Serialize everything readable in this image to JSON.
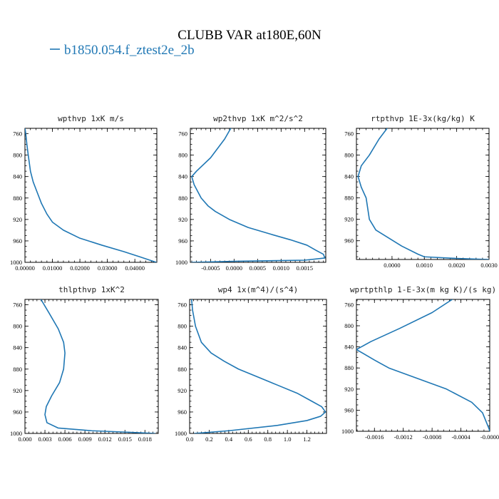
{
  "figure": {
    "title": "CLUBB VAR at180E,60N",
    "legend": [
      {
        "label": "b1850.054.f_ztest2e_2b",
        "color": "#1f77b4"
      }
    ]
  },
  "chart_data": [
    {
      "type": "line",
      "title": "wpthvp  1xK m/s",
      "y_inverted": true,
      "ylim": [
        1000,
        750
      ],
      "yticks": [
        "760",
        "800",
        "840",
        "880",
        "920",
        "960",
        "1000"
      ],
      "xlim": [
        0,
        0.048
      ],
      "xticks": [
        0,
        0.01,
        0.02,
        0.03,
        0.04
      ],
      "xticklabels": [
        "0.00000",
        "0.01000",
        "0.02000",
        "0.03000",
        "0.04000"
      ],
      "series": [
        {
          "color": "#1f77b4",
          "x": [
            0.0,
            0.0003,
            0.0007,
            0.0012,
            0.002,
            0.003,
            0.0045,
            0.006,
            0.008,
            0.01,
            0.014,
            0.02,
            0.028,
            0.036,
            0.042,
            0.0478
          ],
          "y": [
            750,
            760,
            780,
            800,
            830,
            850,
            870,
            890,
            910,
            925,
            940,
            955,
            968,
            980,
            990,
            1000
          ]
        }
      ]
    },
    {
      "type": "line",
      "title": "wp2thvp  1xK m^2/s^2",
      "y_inverted": true,
      "ylim": [
        1000,
        750
      ],
      "yticks": [
        "760",
        "800",
        "840",
        "880",
        "920",
        "960",
        "1000"
      ],
      "xlim": [
        -0.00093,
        0.00195
      ],
      "xticks": [
        -0.0005,
        0.0,
        0.0005,
        0.001,
        0.0015
      ],
      "xticklabels": [
        "-0.0005",
        "0.0000",
        "0.0005",
        "0.0010",
        "0.0015"
      ],
      "series": [
        {
          "color": "#1f77b4",
          "x": [
            -7e-05,
            -0.0002,
            -0.0005,
            -0.0008,
            -0.0009,
            -0.00085,
            -0.0007,
            -0.00055,
            -0.0004,
            -0.0001,
            0.0003,
            0.0008,
            0.0012,
            0.00155,
            0.00175,
            0.0019,
            0.00193,
            0.0015,
            0.0,
            -0.0009
          ],
          "y": [
            750,
            770,
            805,
            830,
            840,
            855,
            880,
            895,
            905,
            920,
            935,
            948,
            958,
            968,
            978,
            985,
            992,
            996,
            998,
            1000
          ]
        }
      ]
    },
    {
      "type": "line",
      "title": "rtpthvp  1E-3x(kg/kg) K",
      "y_inverted": true,
      "ylim": [
        995,
        750
      ],
      "yticks": [
        "760",
        "800",
        "840",
        "880",
        "920",
        "960",
        "1000"
      ],
      "xlim": [
        -0.0011,
        0.003
      ],
      "xticks": [
        0,
        0.001,
        0.002,
        0.003
      ],
      "xticklabels": [
        "0.0000",
        "0.0010",
        "0.0020",
        "0.0030"
      ],
      "series": [
        {
          "color": "#1f77b4",
          "x": [
            -0.00015,
            -0.0004,
            -0.0007,
            -0.00095,
            -0.00105,
            -0.00095,
            -0.0008,
            -0.00075,
            -0.0007,
            -0.0005,
            -0.0001,
            0.0003,
            0.0008,
            0.001,
            0.002,
            0.003
          ],
          "y": [
            750,
            770,
            800,
            820,
            840,
            860,
            880,
            900,
            920,
            940,
            955,
            970,
            985,
            990,
            993,
            995
          ]
        }
      ]
    },
    {
      "type": "line",
      "title": "thlpthvp  1xK^2",
      "y_inverted": true,
      "ylim": [
        1000,
        750
      ],
      "yticks": [
        "760",
        "800",
        "840",
        "880",
        "920",
        "960",
        "1000"
      ],
      "xlim": [
        0,
        0.02
      ],
      "xticks": [
        0,
        0.003,
        0.006,
        0.009,
        0.012,
        0.015,
        0.018
      ],
      "xticklabels": [
        "0.000",
        "0.003",
        "0.006",
        "0.009",
        "0.012",
        "0.015",
        "0.018"
      ],
      "series": [
        {
          "color": "#1f77b4",
          "x": [
            0.0024,
            0.0036,
            0.005,
            0.0058,
            0.006,
            0.0058,
            0.0052,
            0.004,
            0.0032,
            0.003,
            0.0033,
            0.005,
            0.01,
            0.016,
            0.0195
          ],
          "y": [
            750,
            775,
            805,
            830,
            850,
            880,
            905,
            930,
            950,
            965,
            980,
            990,
            995,
            998,
            1000
          ]
        }
      ]
    },
    {
      "type": "line",
      "title": "wp4  1x(m^4)/(s^4)",
      "y_inverted": true,
      "ylim": [
        1000,
        750
      ],
      "yticks": [
        "760",
        "800",
        "840",
        "880",
        "920",
        "960",
        "1000"
      ],
      "xlim": [
        0,
        1.4
      ],
      "xticks": [
        0,
        0.2,
        0.4,
        0.6,
        0.8,
        1.0,
        1.2
      ],
      "xticklabels": [
        "0.0",
        "0.2",
        "0.4",
        "0.6",
        "0.8",
        "1.0",
        "1.2"
      ],
      "series": [
        {
          "color": "#1f77b4",
          "x": [
            0.02,
            0.03,
            0.06,
            0.12,
            0.22,
            0.35,
            0.5,
            0.7,
            0.9,
            1.1,
            1.25,
            1.35,
            1.39,
            1.34,
            1.2,
            0.9,
            0.4,
            0.05
          ],
          "y": [
            750,
            770,
            800,
            830,
            850,
            865,
            880,
            895,
            910,
            925,
            940,
            950,
            960,
            968,
            976,
            985,
            995,
            1000
          ]
        }
      ]
    },
    {
      "type": "line",
      "title": "wprtpthlp  1-E-3x(m kg K)/(s kg)",
      "y_inverted": true,
      "ylim": [
        1000,
        750
      ],
      "yticks": [
        "760",
        "800",
        "840",
        "880",
        "920",
        "960",
        "1000"
      ],
      "xlim": [
        -0.00185,
        0.0
      ],
      "xticks": [
        -0.0016,
        -0.0012,
        -0.0008,
        -0.0004,
        0.0
      ],
      "xticklabels": [
        "-0.0016",
        "-0.0012",
        "-0.0008",
        "-0.0004",
        "-0.0000"
      ],
      "series": [
        {
          "color": "#1f77b4",
          "x": [
            -0.00052,
            -0.0008,
            -0.00125,
            -0.00165,
            -0.00185,
            -0.0016,
            -0.0014,
            -0.001,
            -0.0006,
            -0.00025,
            -0.0001,
            -4e-05,
            -1e-05,
            0.0
          ],
          "y": [
            750,
            775,
            805,
            830,
            845,
            865,
            880,
            900,
            920,
            945,
            965,
            985,
            995,
            1000
          ]
        }
      ]
    }
  ]
}
